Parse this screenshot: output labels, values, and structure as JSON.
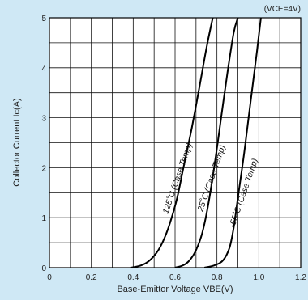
{
  "chart_data": {
    "type": "line",
    "title": "",
    "condition": "(VCE=4V)",
    "xlabel": "Base-Emittor Voltage VBE(V)",
    "ylabel": "Collector Current Ic(A)",
    "xlim": [
      0,
      1.2
    ],
    "ylim": [
      0,
      5
    ],
    "xticks": [
      0,
      0.2,
      0.4,
      0.6,
      0.8,
      1.0,
      1.2
    ],
    "xtick_labels": [
      "0",
      "0.2",
      "0.4",
      "0.6",
      "0.8",
      "1.0",
      "1.2"
    ],
    "yticks": [
      0,
      1,
      2,
      3,
      4,
      5
    ],
    "ytick_labels": [
      "0",
      "1",
      "2",
      "3",
      "4",
      "5"
    ],
    "grid": true,
    "series": [
      {
        "name": "125°C (Case Temp)",
        "x": [
          0.39,
          0.44,
          0.48,
          0.52,
          0.55,
          0.58,
          0.61,
          0.64,
          0.68,
          0.72,
          0.75,
          0.78
        ],
        "y": [
          0.0,
          0.05,
          0.15,
          0.35,
          0.6,
          0.95,
          1.4,
          2.0,
          2.8,
          3.7,
          4.4,
          5.0
        ]
      },
      {
        "name": "25°C (Case Temp)",
        "x": [
          0.6,
          0.64,
          0.67,
          0.7,
          0.73,
          0.76,
          0.79,
          0.82,
          0.85,
          0.88,
          0.9
        ],
        "y": [
          0.0,
          0.05,
          0.15,
          0.35,
          0.7,
          1.3,
          2.1,
          3.0,
          3.9,
          4.7,
          5.0
        ]
      },
      {
        "name": "-55°C (Case Temp)",
        "x": [
          0.74,
          0.79,
          0.83,
          0.86,
          0.88,
          0.9,
          0.93,
          0.96,
          0.99,
          1.01
        ],
        "y": [
          0.0,
          0.05,
          0.15,
          0.4,
          0.8,
          1.4,
          2.3,
          3.3,
          4.3,
          5.0
        ]
      }
    ],
    "curve_labels": [
      "125˚C (Case Temp)",
      "25˚C (Case Temp)",
      "-55˚C (Case Temp)"
    ],
    "colors": {
      "background": "#cfe8f5",
      "plot": "#ffffff",
      "grid": "#111111",
      "line": "#000000"
    }
  }
}
